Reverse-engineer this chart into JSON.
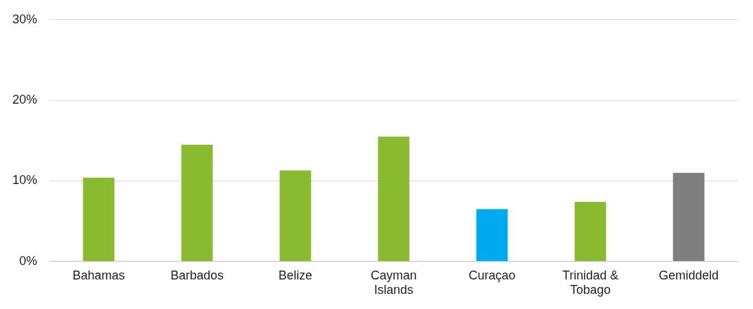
{
  "chart_data": {
    "type": "bar",
    "categories": [
      "Bahamas",
      "Barbados",
      "Belize",
      "Cayman Islands",
      "Curaçao",
      "Trinidad & Tobago",
      "Gemiddeld"
    ],
    "values": [
      10.4,
      14.5,
      11.3,
      15.5,
      6.5,
      7.4,
      11.0
    ],
    "colors": [
      "#8aba2f",
      "#8aba2f",
      "#8aba2f",
      "#8aba2f",
      "#00aaf0",
      "#8aba2f",
      "#7f7f7f"
    ],
    "ylim": [
      0,
      30
    ],
    "yticks": [
      {
        "value": 0,
        "label": "0%"
      },
      {
        "value": 10,
        "label": "10%"
      },
      {
        "value": 20,
        "label": "20%"
      },
      {
        "value": 30,
        "label": "30%"
      }
    ],
    "grid": "y",
    "legend": false
  }
}
